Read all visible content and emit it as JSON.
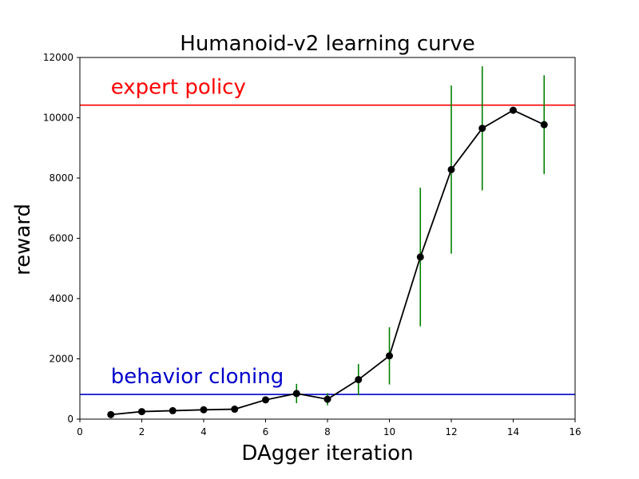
{
  "chart_data": {
    "type": "line",
    "title": "Humanoid-v2 learning curve",
    "xlabel": "DAgger iteration",
    "ylabel": "reward",
    "xlim": [
      0,
      16
    ],
    "ylim": [
      0,
      12000
    ],
    "xticks": [
      0,
      2,
      4,
      6,
      8,
      10,
      12,
      14,
      16
    ],
    "yticks": [
      0,
      2000,
      4000,
      6000,
      8000,
      10000,
      12000
    ],
    "grid": false,
    "series": [
      {
        "color": "#000000",
        "error_color": "#008000",
        "x": [
          1,
          2,
          3,
          4,
          5,
          6,
          7,
          8,
          9,
          10,
          11,
          12,
          13,
          14,
          15
        ],
        "y": [
          150,
          250,
          280,
          310,
          330,
          640,
          850,
          660,
          1310,
          2100,
          5380,
          8280,
          9650,
          10250,
          9770
        ],
        "yerr": [
          20,
          20,
          20,
          20,
          20,
          60,
          320,
          200,
          520,
          950,
          2300,
          2790,
          2060,
          100,
          1640
        ]
      }
    ],
    "reference_lines": [
      {
        "label": "expert policy",
        "y": 10420,
        "color": "#ff0000"
      },
      {
        "label": "behavior cloning",
        "y": 820,
        "color": "#0000cc"
      }
    ]
  }
}
